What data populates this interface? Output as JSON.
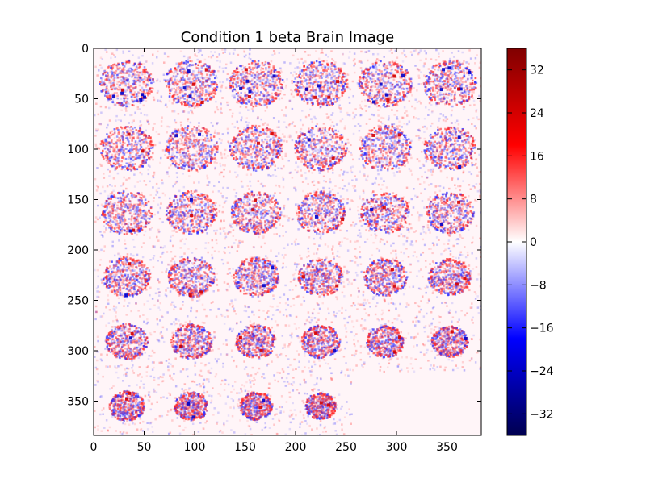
{
  "chart_data": {
    "type": "heatmap",
    "title": "Condition 1 beta Brain Image",
    "xlabel": "",
    "ylabel": "",
    "xlim": [
      0,
      384
    ],
    "ylim": [
      384,
      0
    ],
    "x_ticks": [
      "0",
      "50",
      "100",
      "150",
      "200",
      "250",
      "300",
      "350"
    ],
    "y_ticks": [
      "0",
      "50",
      "100",
      "150",
      "200",
      "250",
      "300",
      "350"
    ],
    "grid": false,
    "colormap": "seismic",
    "colorbar": {
      "min": -36,
      "max": 36,
      "ticks": [
        "32",
        "24",
        "16",
        "8",
        "0",
        "−8",
        "−16",
        "−24",
        "−32"
      ],
      "colors": [
        "#000050",
        "#0000ff",
        "#ffffff",
        "#ff0000",
        "#800000"
      ]
    },
    "slice_grid": {
      "rows": 6,
      "cols": 6,
      "slice_size": 64,
      "filled_slices": 34
    }
  }
}
